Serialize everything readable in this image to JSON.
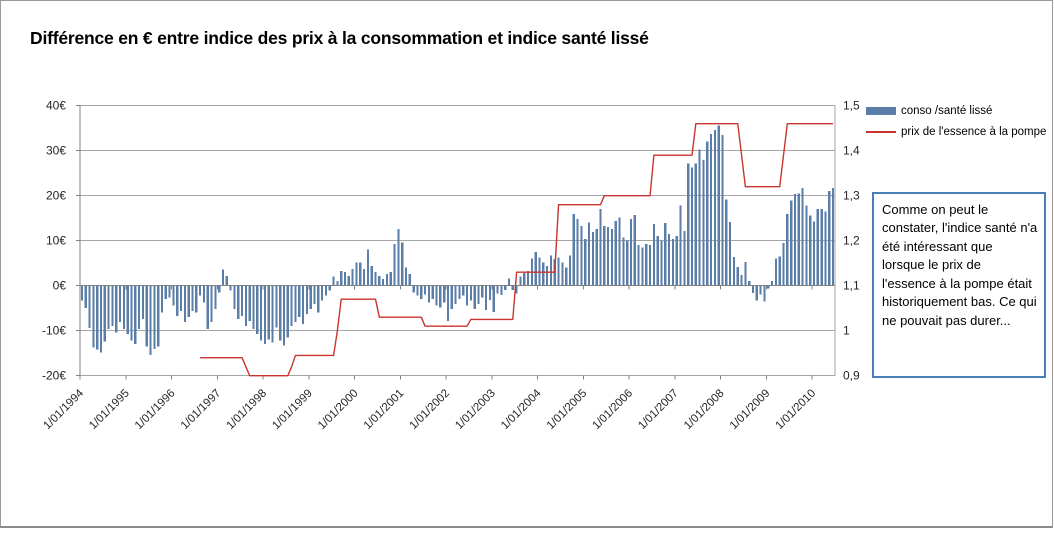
{
  "title": "Différence en € entre indice des prix à la consommation et indice santé lissé",
  "legend": [
    {
      "label": "conso /santé lissé",
      "type": "bar",
      "color": "#5b7ea8"
    },
    {
      "label": "prix de l'essence à la pompe",
      "type": "line",
      "color": "#c9342e"
    }
  ],
  "annotation": {
    "text": "Comme on peut le constater, l'indice santé n'a été intéressant que lorsque le prix de l'essence à la pompe était historiquement bas. Ce qui ne pouvait pas durer...",
    "border_color": "#4a7ebb"
  },
  "colors": {
    "bar": "#5b7ea8",
    "line": "#c9342e",
    "gridline": "#a6a6a6",
    "axis": "#808080",
    "tick_text": "#262626"
  },
  "chart_data": {
    "type": "bar",
    "x_start_label": "1/01/1994",
    "x_frequency": "monthly",
    "x_year_tick_labels": [
      "1/01/1994",
      "1/01/1995",
      "1/01/1996",
      "1/01/1997",
      "1/01/1998",
      "1/01/1999",
      "1/01/2000",
      "1/01/2001",
      "1/01/2002",
      "1/01/2003",
      "1/01/2004",
      "1/01/2005",
      "1/01/2006",
      "1/01/2007",
      "1/01/2008",
      "1/01/2009",
      "1/01/2010"
    ],
    "left_axis": {
      "title": "",
      "unit": "€",
      "min": -20,
      "max": 40,
      "tick_values": [
        40,
        30,
        20,
        10,
        0,
        -10,
        -20
      ],
      "tick_labels": [
        "40€",
        "30€",
        "20€",
        "10€",
        "0€",
        "-10€",
        "-20€"
      ]
    },
    "right_axis": {
      "title": "",
      "min": 0.9,
      "max": 1.5,
      "tick_values": [
        1.5,
        1.4,
        1.3,
        1.2,
        1.1,
        1.0,
        0.9
      ],
      "tick_labels": [
        "1,5",
        "1,4",
        "1,3",
        "1,2",
        "1,1",
        "1",
        "0,9"
      ]
    },
    "grid": true,
    "legend_position": "top-right",
    "series": [
      {
        "name": "conso /santé lissé",
        "type": "bar",
        "axis": "left",
        "values": [
          -3.3,
          -5.0,
          -9.4,
          -13.7,
          -14.2,
          -14.8,
          -12.4,
          -9.6,
          -8.9,
          -10.4,
          -8.1,
          -9.6,
          -10.7,
          -12.2,
          -13.0,
          -9.6,
          -7.4,
          -13.5,
          -15.4,
          -14.1,
          -13.5,
          -5.9,
          -3.0,
          -2.6,
          -4.4,
          -6.7,
          -5.6,
          -8.1,
          -7.0,
          -5.6,
          -5.9,
          -2.2,
          -3.7,
          -9.6,
          -8.1,
          -5.2,
          -1.5,
          3.6,
          2.2,
          -1.1,
          -5.2,
          -7.4,
          -6.7,
          -8.9,
          -7.8,
          -9.6,
          -10.7,
          -12.2,
          -13.0,
          -11.9,
          -12.6,
          -9.3,
          -12.2,
          -13.3,
          -11.5,
          -9.0,
          -8.1,
          -7.0,
          -8.5,
          -6.3,
          -5.2,
          -4.1,
          -5.9,
          -3.3,
          -2.2,
          -1.1,
          2.0,
          1.1,
          3.3,
          3.0,
          2.2,
          3.7,
          5.2,
          5.2,
          3.7,
          8.1,
          4.4,
          3.0,
          2.2,
          1.5,
          2.6,
          3.0,
          9.3,
          12.6,
          9.6,
          4.1,
          2.6,
          -1.5,
          -2.2,
          -3.0,
          -1.9,
          -3.7,
          -3.0,
          -4.4,
          -4.8,
          -3.7,
          -7.8,
          -5.2,
          -4.1,
          -3.0,
          -2.2,
          -4.4,
          -3.3,
          -5.2,
          -4.1,
          -2.6,
          -5.4,
          -3.2,
          -5.8,
          -1.7,
          -2.1,
          -1.0,
          1.6,
          -1.0,
          -1.7,
          2.0,
          2.8,
          3.3,
          6.0,
          7.5,
          6.3,
          5.2,
          4.4,
          6.7,
          5.9,
          6.3,
          5.2,
          4.1,
          6.7,
          15.9,
          14.8,
          13.3,
          10.4,
          14.1,
          11.9,
          12.6,
          17.0,
          13.3,
          13.0,
          12.6,
          14.4,
          15.2,
          10.7,
          10.0,
          14.8,
          15.7,
          9.0,
          8.5,
          9.3,
          9.0,
          13.7,
          11.1,
          10.0,
          13.9,
          11.5,
          10.4,
          11.1,
          17.8,
          12.2,
          27.2,
          26.3,
          27.2,
          30.3,
          27.9,
          32.0,
          33.7,
          34.6,
          35.6,
          33.5,
          19.2,
          14.2,
          6.4,
          4.2,
          2.4,
          5.3,
          1.0,
          -1.6,
          -3.3,
          -1.9,
          -3.5,
          -0.6,
          1.0,
          6.0,
          6.5,
          9.5,
          15.9,
          18.9,
          20.4,
          20.5,
          21.7,
          17.8,
          15.6,
          14.3,
          17.0,
          17.0,
          16.5,
          21.1,
          21.7
        ]
      },
      {
        "name": "prix de l'essence à la pompe",
        "type": "line",
        "axis": "right",
        "values": [
          null,
          null,
          null,
          null,
          null,
          null,
          null,
          null,
          null,
          null,
          null,
          null,
          null,
          null,
          null,
          null,
          null,
          null,
          null,
          null,
          null,
          null,
          null,
          null,
          null,
          null,
          null,
          null,
          null,
          null,
          null,
          0.94,
          0.94,
          0.94,
          0.94,
          0.94,
          0.94,
          0.94,
          0.94,
          0.94,
          0.94,
          0.94,
          0.94,
          0.92,
          0.9,
          0.9,
          0.9,
          0.9,
          0.9,
          0.9,
          0.9,
          0.9,
          0.9,
          0.9,
          0.9,
          0.92,
          0.945,
          0.945,
          0.945,
          0.945,
          0.945,
          0.945,
          0.945,
          0.945,
          0.945,
          0.945,
          0.945,
          1.0,
          1.07,
          1.07,
          1.07,
          1.07,
          1.07,
          1.07,
          1.07,
          1.07,
          1.07,
          1.07,
          1.03,
          1.03,
          1.03,
          1.03,
          1.03,
          1.03,
          1.03,
          1.03,
          1.03,
          1.03,
          1.03,
          1.03,
          1.01,
          1.01,
          1.01,
          1.01,
          1.01,
          1.01,
          1.01,
          1.01,
          1.01,
          1.01,
          1.01,
          1.01,
          1.025,
          1.025,
          1.025,
          1.025,
          1.025,
          1.025,
          1.025,
          1.025,
          1.025,
          1.025,
          1.025,
          1.025,
          1.13,
          1.13,
          1.13,
          1.13,
          1.13,
          1.13,
          1.13,
          1.13,
          1.13,
          1.13,
          1.13,
          1.28,
          1.28,
          1.28,
          1.28,
          1.28,
          1.28,
          1.28,
          1.28,
          1.28,
          1.28,
          1.28,
          1.28,
          1.3,
          1.3,
          1.3,
          1.3,
          1.3,
          1.3,
          1.3,
          1.3,
          1.3,
          1.3,
          1.3,
          1.3,
          1.3,
          1.39,
          1.39,
          1.39,
          1.39,
          1.39,
          1.39,
          1.39,
          1.39,
          1.39,
          1.39,
          1.39,
          1.46,
          1.46,
          1.46,
          1.46,
          1.46,
          1.46,
          1.46,
          1.46,
          1.46,
          1.46,
          1.46,
          1.46,
          1.39,
          1.32,
          1.32,
          1.32,
          1.32,
          1.32,
          1.32,
          1.32,
          1.32,
          1.32,
          1.32,
          1.39,
          1.46,
          1.46,
          1.46,
          1.46,
          1.46,
          1.46,
          1.46,
          1.46,
          1.46,
          1.46,
          1.46,
          1.46,
          1.46
        ]
      }
    ]
  }
}
